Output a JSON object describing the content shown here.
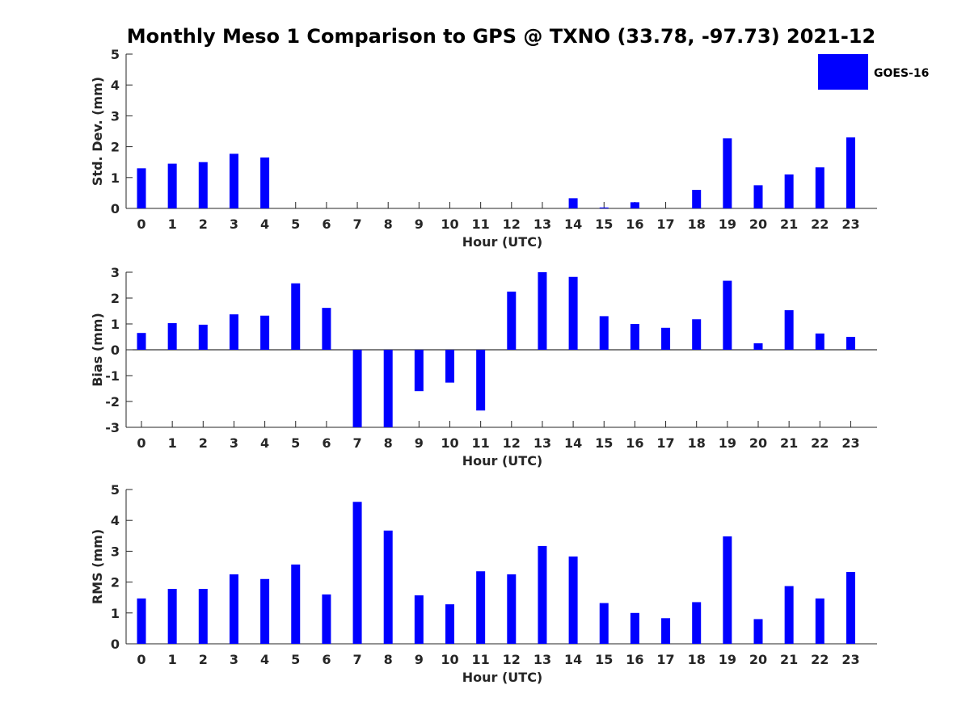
{
  "title": "Monthly Meso 1 Comparison to GPS @ TXNO (33.78, -97.73) 2021-12",
  "legend": {
    "label": "GOES-16",
    "color": "#0000ff"
  },
  "chart_data": [
    {
      "type": "bar",
      "ylabel": "Std. Dev. (mm)",
      "xlabel": "Hour (UTC)",
      "ylim": [
        0,
        5
      ],
      "yticks": [
        0,
        1,
        2,
        3,
        4,
        5
      ],
      "categories": [
        0,
        1,
        2,
        3,
        4,
        5,
        6,
        7,
        8,
        9,
        10,
        11,
        12,
        13,
        14,
        15,
        16,
        17,
        18,
        19,
        20,
        21,
        22,
        23
      ],
      "series": [
        {
          "name": "GOES-16",
          "values": [
            1.3,
            1.45,
            1.5,
            1.77,
            1.65,
            0,
            0,
            0,
            0,
            0,
            0,
            0,
            0,
            0,
            0.33,
            0.03,
            0.2,
            0,
            0.6,
            2.27,
            0.75,
            1.1,
            1.33,
            2.3
          ]
        }
      ]
    },
    {
      "type": "bar",
      "ylabel": "Bias (mm)",
      "xlabel": "Hour (UTC)",
      "ylim": [
        -3,
        3
      ],
      "yticks": [
        -3,
        -2,
        -1,
        0,
        1,
        2,
        3
      ],
      "categories": [
        0,
        1,
        2,
        3,
        4,
        5,
        6,
        7,
        8,
        9,
        10,
        11,
        12,
        13,
        14,
        15,
        16,
        17,
        18,
        19,
        20,
        21,
        22,
        23
      ],
      "series": [
        {
          "name": "GOES-16",
          "values": [
            0.65,
            1.03,
            0.97,
            1.37,
            1.32,
            2.57,
            1.62,
            -3,
            -3,
            -1.6,
            -1.27,
            -2.35,
            2.25,
            3,
            2.82,
            1.3,
            1.0,
            0.85,
            1.18,
            2.67,
            0.25,
            1.53,
            0.63,
            0.5
          ]
        }
      ]
    },
    {
      "type": "bar",
      "ylabel": "RMS (mm)",
      "xlabel": "Hour (UTC)",
      "ylim": [
        0,
        5
      ],
      "yticks": [
        0,
        1,
        2,
        3,
        4,
        5
      ],
      "categories": [
        0,
        1,
        2,
        3,
        4,
        5,
        6,
        7,
        8,
        9,
        10,
        11,
        12,
        13,
        14,
        15,
        16,
        17,
        18,
        19,
        20,
        21,
        22,
        23
      ],
      "series": [
        {
          "name": "GOES-16",
          "values": [
            1.47,
            1.78,
            1.78,
            2.25,
            2.1,
            2.57,
            1.6,
            4.6,
            3.67,
            1.57,
            1.28,
            2.35,
            2.25,
            3.17,
            2.83,
            1.32,
            1.0,
            0.83,
            1.35,
            3.48,
            0.8,
            1.87,
            1.47,
            2.33
          ]
        }
      ]
    }
  ]
}
